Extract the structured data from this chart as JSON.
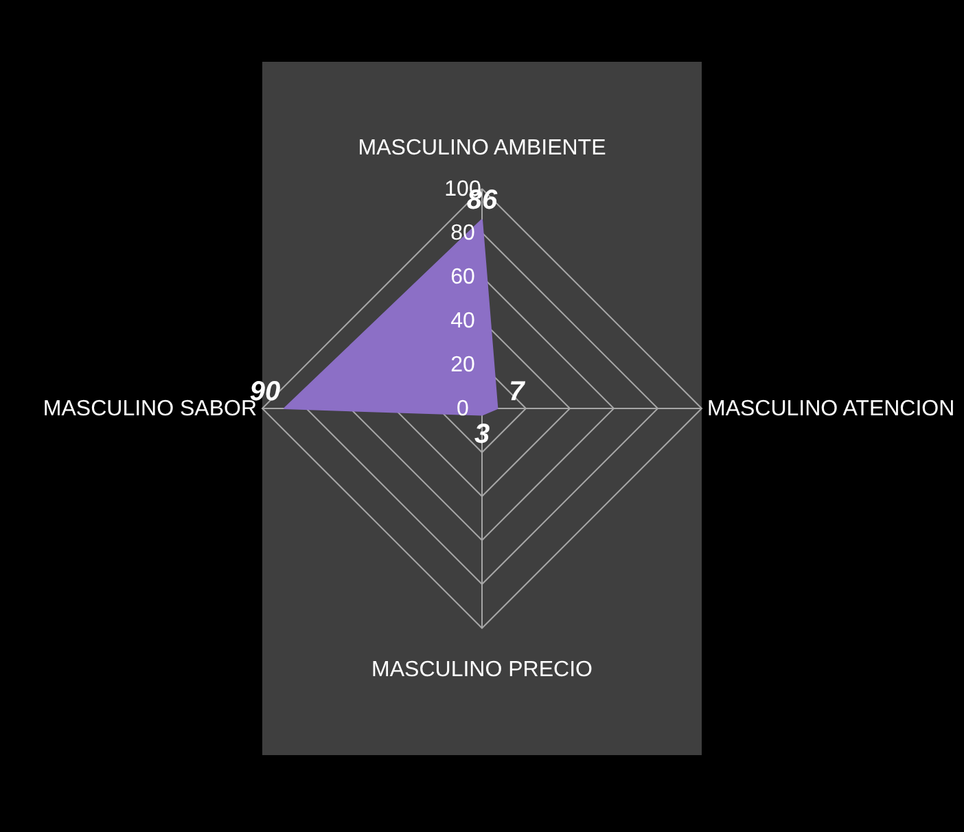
{
  "chart_data": {
    "type": "radar",
    "categories": [
      "MASCULINO AMBIENTE",
      "MASCULINO ATENCION",
      "MASCULINO PRECIO",
      "MASCULINO SABOR"
    ],
    "series": [
      {
        "color": "#8c6fc6",
        "values": [
          86,
          7,
          3,
          90
        ]
      }
    ],
    "ylim": [
      0,
      100
    ],
    "yticks": [
      0,
      20,
      40,
      60,
      80,
      100
    ],
    "grid": true,
    "data_labels": true
  }
}
